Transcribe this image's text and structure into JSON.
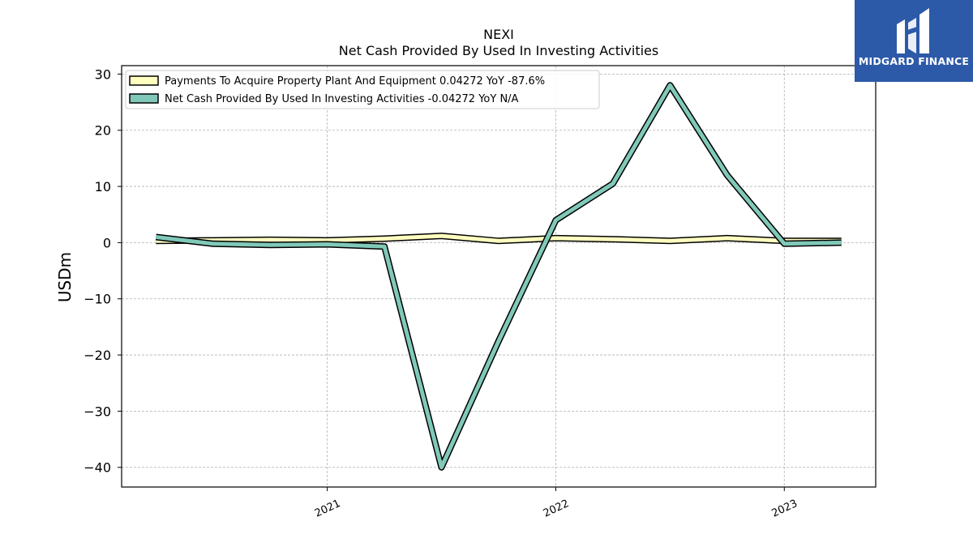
{
  "chart_data": {
    "type": "line",
    "title": "NEXI",
    "subtitle": "Net Cash Provided By Used In Investing Activities",
    "ylabel": "USDm",
    "xlabel": "",
    "ylim": [
      -43.5,
      31.5
    ],
    "xlim": [
      2020.1,
      2023.4
    ],
    "yticks": [
      30,
      20,
      10,
      0,
      -10,
      -20,
      -30,
      -40
    ],
    "ytick_labels": [
      "30",
      "20",
      "10",
      "0",
      "−10",
      "−20",
      "−30",
      "−40"
    ],
    "xticks": [
      2021,
      2022,
      2023
    ],
    "xtick_labels": [
      "2021",
      "2022",
      "2023"
    ],
    "grid": true,
    "legend_position": "top-left",
    "x": [
      2020.25,
      2020.5,
      2020.75,
      2021.0,
      2021.25,
      2021.5,
      2021.75,
      2022.0,
      2022.25,
      2022.5,
      2022.75,
      2023.0,
      2023.25
    ],
    "series": [
      {
        "name": "Payments To Acquire Property Plant And Equipment  0.04272 YoY -87.6%",
        "color": "#ffffc0",
        "values": [
          0.3,
          0.4,
          0.5,
          0.4,
          0.7,
          1.2,
          0.3,
          0.8,
          0.6,
          0.3,
          0.8,
          0.3,
          0.3
        ]
      },
      {
        "name": "Net Cash Provided By Used In Investing Activities  -0.04272 YoY N/A",
        "color": "#80c9b9",
        "values": [
          1.0,
          -0.2,
          -0.4,
          -0.3,
          -0.7,
          -40.0,
          -17.5,
          4.0,
          10.5,
          28.0,
          12.0,
          -0.2,
          0.0
        ]
      }
    ]
  },
  "logo": {
    "text": "MIDGARD FINANCE",
    "background": "#2d5aa8"
  }
}
